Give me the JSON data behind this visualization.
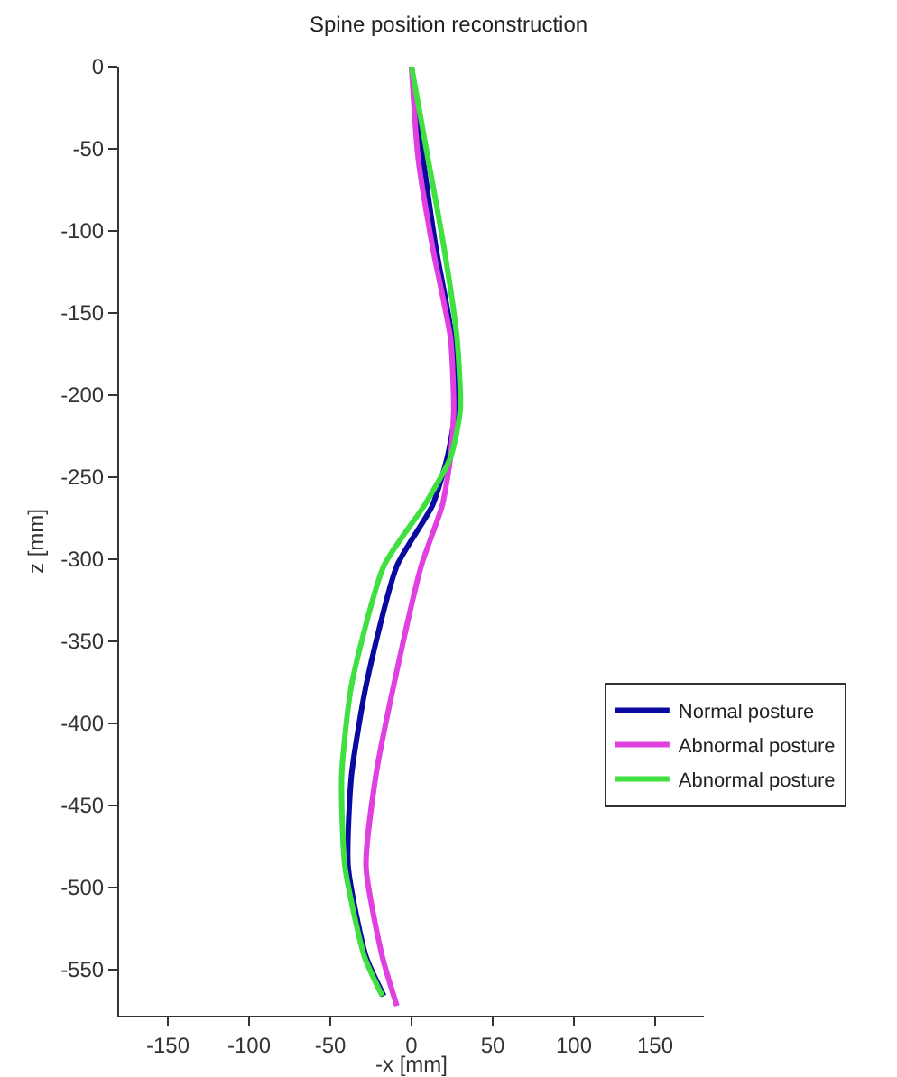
{
  "chart_data": {
    "type": "line",
    "title": "Spine position reconstruction",
    "xlabel": "-x [mm]",
    "ylabel": "z [mm]",
    "xlim": [
      -180,
      180
    ],
    "xticks": [
      -150,
      -100,
      -50,
      0,
      50,
      100,
      150
    ],
    "ylim": [
      -578,
      0
    ],
    "yticks": [
      -550,
      -500,
      -450,
      -400,
      -350,
      -300,
      -250,
      -200,
      -150,
      -100,
      -50,
      0
    ],
    "grid": false,
    "legend": "bottom right",
    "line_style": "solid",
    "marker": "none",
    "series": [
      {
        "name": "Normal posture",
        "color": "#0a0aa0",
        "x": [
          0,
          7,
          15,
          25,
          27,
          22,
          13,
          -9,
          -28,
          -37,
          -39,
          -28,
          -17
        ],
        "values": [
          0,
          -55,
          -110,
          -165,
          -209,
          -238,
          -267,
          -304,
          -377,
          -432,
          -487,
          -542,
          -566
        ]
      },
      {
        "name": "Abnormal posture",
        "color": "#e040e0",
        "x": [
          0,
          4,
          13,
          24,
          26,
          24,
          19,
          6,
          -11,
          -22,
          -28,
          -18,
          -9
        ],
        "values": [
          0,
          -55,
          -110,
          -165,
          -209,
          -238,
          -267,
          -304,
          -377,
          -432,
          -487,
          -542,
          -572
        ]
      },
      {
        "name": "Abnormal posture",
        "color": "#40e040",
        "x": [
          0,
          10,
          20,
          28,
          30,
          24,
          8,
          -17,
          -37,
          -43,
          -41,
          -29,
          -18
        ],
        "values": [
          0,
          -55,
          -110,
          -165,
          -209,
          -238,
          -267,
          -304,
          -377,
          -432,
          -487,
          -542,
          -566
        ]
      }
    ]
  }
}
